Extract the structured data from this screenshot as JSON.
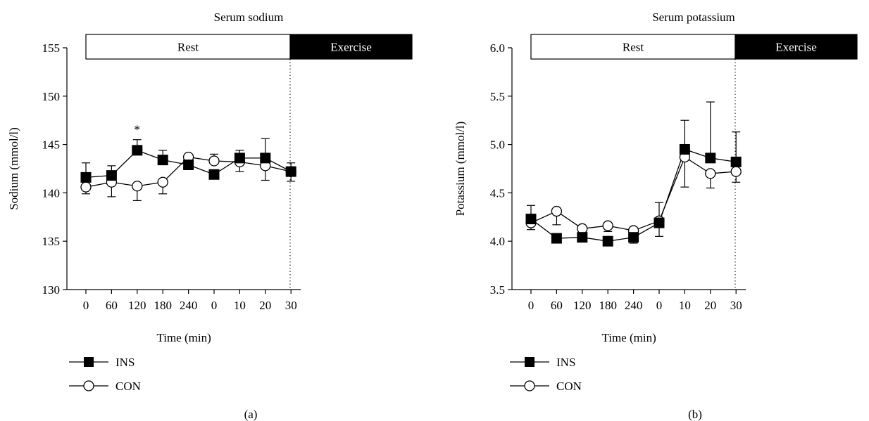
{
  "chart_data": [
    {
      "type": "line",
      "panel_label": "(a)",
      "title": "Serum sodium",
      "xlabel": "Time (min)",
      "ylabel": "Sodium (mmol/l)",
      "ylim": [
        130,
        155
      ],
      "y_ticks": [
        "130",
        "135",
        "140",
        "145",
        "150",
        "155"
      ],
      "categories": [
        "0",
        "60",
        "120",
        "180",
        "240",
        "0",
        "10",
        "20",
        "30"
      ],
      "phases": [
        {
          "label": "Rest",
          "fill": "#ffffff",
          "text_color": "#000000"
        },
        {
          "label": "Exercise",
          "fill": "#000000",
          "text_color": "#ffffff"
        }
      ],
      "annotation": "*",
      "annotation_index": 2,
      "series": [
        {
          "name": "INS",
          "marker": "filled-square",
          "color": "#000000",
          "values": [
            141.6,
            141.8,
            144.4,
            143.4,
            142.9,
            141.9,
            143.6,
            143.6,
            142.2
          ],
          "err_up": [
            1.5,
            1.0,
            1.1,
            1.0,
            0,
            0,
            0.8,
            2.0,
            0.9
          ],
          "err_down": [
            0,
            0,
            0,
            0,
            0.5,
            0,
            0,
            0,
            0
          ]
        },
        {
          "name": "CON",
          "marker": "open-circle",
          "color": "#000000",
          "values": [
            140.6,
            141.1,
            140.7,
            141.1,
            143.7,
            143.3,
            143.2,
            142.8,
            142.2
          ],
          "err_up": [
            0,
            0,
            0,
            0,
            0,
            0.7,
            0,
            0,
            0
          ],
          "err_down": [
            0.7,
            1.5,
            1.5,
            1.2,
            0,
            0,
            1.0,
            1.5,
            1.0
          ]
        }
      ]
    },
    {
      "type": "line",
      "panel_label": "(b)",
      "title": "Serum potassium",
      "xlabel": "Time (min)",
      "ylabel": "Potassium (mmol/l)",
      "ylim": [
        3.5,
        6.0
      ],
      "y_ticks": [
        "3.5",
        "4.0",
        "4.5",
        "5.0",
        "5.5",
        "6.0"
      ],
      "categories": [
        "0",
        "60",
        "120",
        "180",
        "240",
        "0",
        "10",
        "20",
        "30"
      ],
      "phases": [
        {
          "label": "Rest",
          "fill": "#ffffff",
          "text_color": "#000000"
        },
        {
          "label": "Exercise",
          "fill": "#000000",
          "text_color": "#ffffff"
        }
      ],
      "series": [
        {
          "name": "INS",
          "marker": "filled-square",
          "color": "#000000",
          "values": [
            4.23,
            4.03,
            4.04,
            4.0,
            4.04,
            4.19,
            4.95,
            4.86,
            4.82
          ],
          "err_up": [
            0.14,
            0,
            0,
            0,
            0,
            0.21,
            0.3,
            0.58,
            0.31
          ],
          "err_down": [
            0,
            0,
            0,
            0,
            0.06,
            0,
            0,
            0,
            0
          ]
        },
        {
          "name": "CON",
          "marker": "open-circle",
          "color": "#000000",
          "values": [
            4.19,
            4.31,
            4.13,
            4.16,
            4.11,
            4.21,
            4.87,
            4.7,
            4.72
          ],
          "err_up": [
            0,
            0,
            0,
            0,
            0,
            0,
            0,
            0,
            0
          ],
          "err_down": [
            0.07,
            0.14,
            0,
            0.06,
            0,
            0.16,
            0.31,
            0.15,
            0.11
          ]
        }
      ]
    }
  ]
}
